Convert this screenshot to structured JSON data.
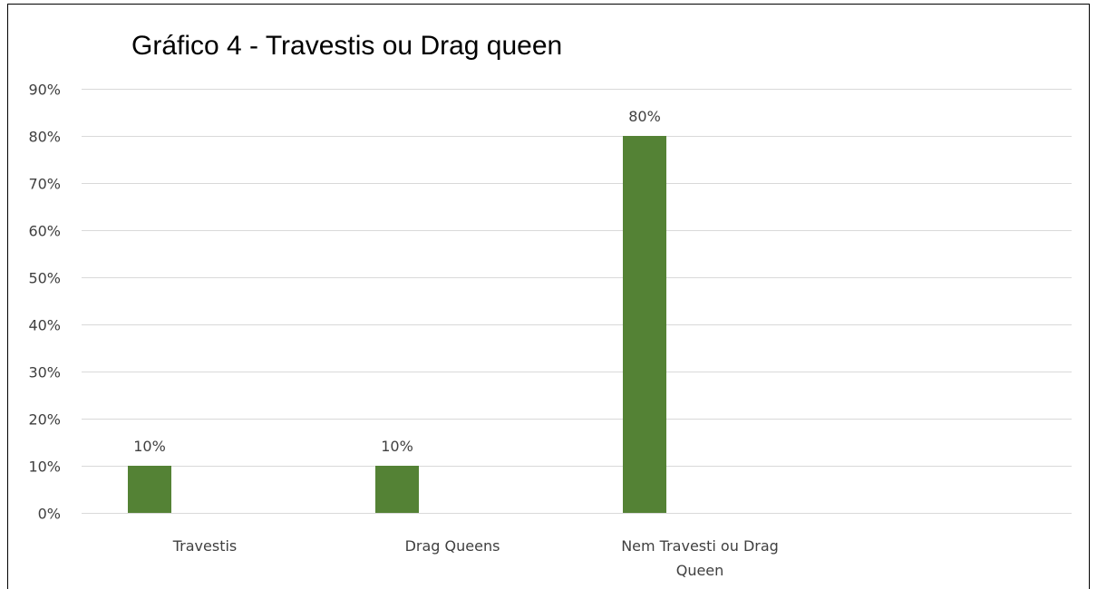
{
  "chart_data": {
    "type": "bar",
    "title": "Gráfico 4 - Travestis ou Drag queen",
    "xlabel": "",
    "ylabel": "",
    "categories": [
      "Travestis",
      "Drag Queens",
      "Nem Travesti ou Drag Queen"
    ],
    "category_lines": [
      [
        "Travestis"
      ],
      [
        "Drag Queens"
      ],
      [
        "Nem Travesti ou Drag",
        "Queen"
      ]
    ],
    "values": [
      10,
      10,
      80
    ],
    "data_labels": [
      "10%",
      "10%",
      "80%"
    ],
    "ylim": [
      0,
      90
    ],
    "y_ticks": [
      0,
      10,
      20,
      30,
      40,
      50,
      60,
      70,
      80,
      90
    ],
    "y_tick_labels": [
      "0%",
      "10%",
      "20%",
      "30%",
      "40%",
      "50%",
      "60%",
      "70%",
      "80%",
      "90%"
    ],
    "grid": true,
    "legend": "none",
    "colors": {
      "bar": "#548235",
      "grid": "#d9d9d9",
      "frame": "#000000",
      "text": "#404040"
    }
  }
}
